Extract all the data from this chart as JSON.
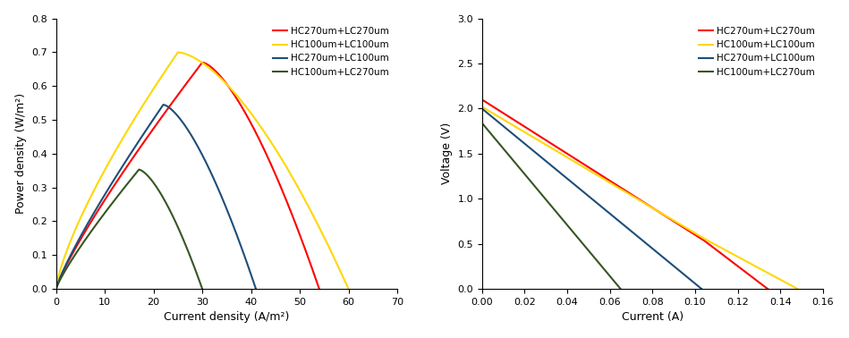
{
  "left_chart": {
    "xlabel": "Current density (A/m²)",
    "ylabel": "Power density (W/m²)",
    "xlim": [
      0,
      70
    ],
    "ylim": [
      0,
      0.8
    ],
    "xticks": [
      0,
      10,
      20,
      30,
      40,
      50,
      60,
      70
    ],
    "yticks": [
      0,
      0.1,
      0.2,
      0.3,
      0.4,
      0.5,
      0.6,
      0.7,
      0.8
    ],
    "series": [
      {
        "label": "HC270um+LC270um",
        "color": "#FF0000",
        "x_start": 0,
        "x_peak": 30,
        "x_end": 54,
        "y_peak": 0.67,
        "rise_exp": 0.85,
        "fall_exp": 1.5
      },
      {
        "label": "HC100um+LC100um",
        "color": "#FFD700",
        "x_start": 0,
        "x_peak": 25,
        "x_end": 60,
        "y_peak": 0.7,
        "rise_exp": 0.75,
        "fall_exp": 1.6
      },
      {
        "label": "HC270um+LC100um",
        "color": "#1F4E79",
        "x_start": 0,
        "x_peak": 22,
        "x_end": 41,
        "y_peak": 0.545,
        "rise_exp": 0.85,
        "fall_exp": 1.5
      },
      {
        "label": "HC100um+LC270um",
        "color": "#375623",
        "x_start": 0,
        "x_peak": 17,
        "x_end": 30,
        "y_peak": 0.353,
        "rise_exp": 0.85,
        "fall_exp": 1.5
      }
    ]
  },
  "right_chart": {
    "xlabel": "Current (A)",
    "ylabel": "Voltage (V)",
    "xlim": [
      0,
      0.16
    ],
    "ylim": [
      0,
      3.0
    ],
    "xticks": [
      0.0,
      0.02,
      0.04,
      0.06,
      0.08,
      0.1,
      0.12,
      0.14,
      0.16
    ],
    "yticks": [
      0.0,
      0.5,
      1.0,
      1.5,
      2.0,
      2.5,
      3.0
    ],
    "series": [
      {
        "label": "HC270um+LC270um",
        "color": "#FF0000",
        "points_x": [
          0.0,
          0.104,
          0.134
        ],
        "points_y": [
          2.1,
          0.54,
          0.0
        ]
      },
      {
        "label": "HC100um+LC100um",
        "color": "#FFD700",
        "points_x": [
          0.0,
          0.104,
          0.148
        ],
        "points_y": [
          2.02,
          0.56,
          0.0
        ]
      },
      {
        "label": "HC270um+LC100um",
        "color": "#1F4E79",
        "points_x": [
          0.0,
          0.103
        ],
        "points_y": [
          2.0,
          0.0
        ]
      },
      {
        "label": "HC100um+LC270um",
        "color": "#375623",
        "points_x": [
          0.0,
          0.065
        ],
        "points_y": [
          1.84,
          0.0
        ]
      }
    ]
  }
}
